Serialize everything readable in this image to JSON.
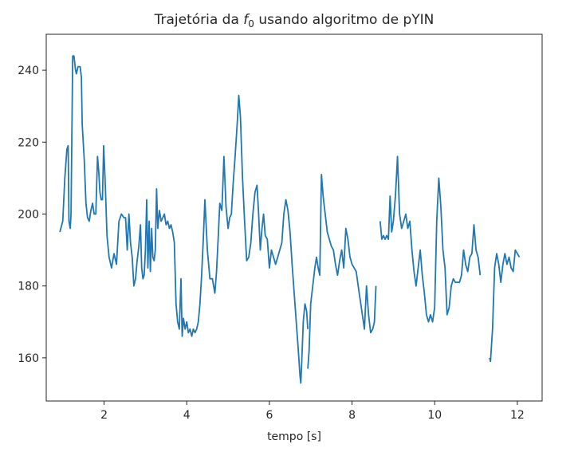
{
  "chart_data": {
    "type": "line",
    "title": "Trajetória da ",
    "title_symbol": "f",
    "title_subscript": "0",
    "title_rest": " usando algoritmo de pYIN",
    "xlabel": "tempo [s]",
    "ylabel": "",
    "xlim": [
      0.6,
      12.6
    ],
    "ylim": [
      148,
      250
    ],
    "xticks": [
      2,
      4,
      6,
      8,
      10,
      12
    ],
    "yticks": [
      160,
      180,
      200,
      220,
      240
    ],
    "grid": false,
    "line_color": "#1f77b4",
    "series": [
      {
        "segments": [
          [
            [
              0.93,
              195
            ],
            [
              1.0,
              198
            ],
            [
              1.05,
              210
            ],
            [
              1.1,
              218
            ],
            [
              1.13,
              219
            ],
            [
              1.15,
              198
            ],
            [
              1.18,
              196
            ],
            [
              1.2,
              200
            ],
            [
              1.24,
              244
            ],
            [
              1.27,
              244
            ],
            [
              1.31,
              240
            ],
            [
              1.33,
              239
            ],
            [
              1.37,
              241
            ],
            [
              1.42,
              241
            ],
            [
              1.45,
              238
            ],
            [
              1.47,
              225
            ],
            [
              1.52,
              215
            ],
            [
              1.56,
              203
            ],
            [
              1.6,
              199
            ],
            [
              1.64,
              198
            ],
            [
              1.68,
              201
            ],
            [
              1.72,
              203
            ],
            [
              1.76,
              200
            ],
            [
              1.8,
              200
            ],
            [
              1.84,
              216
            ],
            [
              1.87,
              212
            ],
            [
              1.9,
              206
            ],
            [
              1.93,
              204
            ],
            [
              1.96,
              204
            ],
            [
              1.99,
              219
            ],
            [
              2.03,
              208
            ],
            [
              2.07,
              194
            ],
            [
              2.12,
              188
            ],
            [
              2.18,
              185
            ],
            [
              2.24,
              189
            ],
            [
              2.3,
              186
            ],
            [
              2.36,
              198
            ],
            [
              2.42,
              200
            ],
            [
              2.48,
              199
            ],
            [
              2.52,
              199
            ],
            [
              2.56,
              190
            ],
            [
              2.6,
              200
            ],
            [
              2.64,
              192
            ],
            [
              2.68,
              188
            ],
            [
              2.72,
              180
            ],
            [
              2.76,
              182
            ],
            [
              2.8,
              187
            ],
            [
              2.84,
              191
            ],
            [
              2.88,
              197
            ],
            [
              2.91,
              185
            ],
            [
              2.94,
              182
            ],
            [
              2.97,
              183
            ],
            [
              3.0,
              190
            ],
            [
              3.03,
              204
            ],
            [
              3.06,
              185
            ],
            [
              3.09,
              198
            ],
            [
              3.12,
              184
            ],
            [
              3.15,
              196
            ],
            [
              3.18,
              188
            ],
            [
              3.21,
              187
            ],
            [
              3.24,
              190
            ],
            [
              3.27,
              207
            ],
            [
              3.3,
              196
            ],
            [
              3.34,
              201
            ],
            [
              3.38,
              198
            ],
            [
              3.42,
              199
            ],
            [
              3.46,
              200
            ],
            [
              3.5,
              197
            ],
            [
              3.54,
              198
            ],
            [
              3.58,
              196
            ],
            [
              3.62,
              197
            ],
            [
              3.66,
              195
            ],
            [
              3.7,
              192
            ],
            [
              3.74,
              175
            ],
            [
              3.78,
              170
            ],
            [
              3.82,
              168
            ],
            [
              3.86,
              182
            ],
            [
              3.89,
              166
            ],
            [
              3.92,
              171
            ],
            [
              3.96,
              168
            ],
            [
              4.0,
              170
            ],
            [
              4.04,
              167
            ],
            [
              4.08,
              168
            ],
            [
              4.12,
              166
            ],
            [
              4.16,
              168
            ],
            [
              4.2,
              167
            ],
            [
              4.24,
              168
            ],
            [
              4.28,
              170
            ],
            [
              4.32,
              175
            ],
            [
              4.36,
              183
            ],
            [
              4.4,
              193
            ],
            [
              4.44,
              204
            ],
            [
              4.5,
              190
            ],
            [
              4.56,
              182
            ],
            [
              4.62,
              182
            ],
            [
              4.68,
              178
            ],
            [
              4.72,
              184
            ],
            [
              4.76,
              193
            ],
            [
              4.8,
              203
            ],
            [
              4.85,
              201
            ],
            [
              4.9,
              216
            ],
            [
              4.95,
              202
            ],
            [
              5.0,
              196
            ],
            [
              5.04,
              199
            ],
            [
              5.08,
              200
            ],
            [
              5.12,
              208
            ],
            [
              5.17,
              216
            ],
            [
              5.22,
              225
            ],
            [
              5.26,
              233
            ],
            [
              5.3,
              227
            ],
            [
              5.35,
              210
            ],
            [
              5.4,
              198
            ],
            [
              5.45,
              187
            ],
            [
              5.5,
              188
            ],
            [
              5.55,
              192
            ],
            [
              5.6,
              200
            ],
            [
              5.65,
              206
            ],
            [
              5.7,
              208
            ],
            [
              5.74,
              200
            ],
            [
              5.78,
              190
            ],
            [
              5.82,
              196
            ],
            [
              5.86,
              200
            ],
            [
              5.9,
              194
            ],
            [
              5.95,
              193
            ],
            [
              6.0,
              185
            ],
            [
              6.05,
              190
            ],
            [
              6.1,
              188
            ],
            [
              6.15,
              186
            ],
            [
              6.2,
              188
            ],
            [
              6.25,
              190
            ],
            [
              6.3,
              192
            ],
            [
              6.35,
              200
            ],
            [
              6.4,
              204
            ],
            [
              6.45,
              201
            ],
            [
              6.5,
              195
            ],
            [
              6.55,
              186
            ],
            [
              6.6,
              178
            ],
            [
              6.65,
              170
            ],
            [
              6.7,
              162
            ],
            [
              6.74,
              155
            ],
            [
              6.76,
              153
            ],
            [
              6.78,
              158
            ],
            [
              6.82,
              170
            ],
            [
              6.86,
              175
            ],
            [
              6.9,
              173
            ],
            [
              6.93,
              168
            ]
          ],
          [
            [
              6.93,
              157
            ],
            [
              6.96,
              162
            ],
            [
              7.0,
              175
            ],
            [
              7.05,
              180
            ],
            [
              7.1,
              185
            ],
            [
              7.14,
              188
            ],
            [
              7.18,
              185
            ],
            [
              7.22,
              183
            ],
            [
              7.26,
              211
            ],
            [
              7.3,
              205
            ],
            [
              7.35,
              200
            ],
            [
              7.4,
              195
            ],
            [
              7.45,
              193
            ],
            [
              7.5,
              191
            ],
            [
              7.55,
              190
            ],
            [
              7.6,
              186
            ],
            [
              7.65,
              183
            ],
            [
              7.7,
              187
            ],
            [
              7.75,
              190
            ],
            [
              7.8,
              185
            ],
            [
              7.85,
              196
            ],
            [
              7.9,
              193
            ],
            [
              7.95,
              188
            ],
            [
              8.0,
              186
            ],
            [
              8.05,
              185
            ],
            [
              8.1,
              184
            ],
            [
              8.15,
              180
            ],
            [
              8.2,
              176
            ],
            [
              8.25,
              172
            ],
            [
              8.3,
              168
            ],
            [
              8.35,
              180
            ],
            [
              8.4,
              172
            ],
            [
              8.45,
              167
            ],
            [
              8.5,
              168
            ],
            [
              8.54,
              170
            ],
            [
              8.58,
              180
            ]
          ],
          [
            [
              8.68,
              198
            ],
            [
              8.72,
              193
            ],
            [
              8.76,
              194
            ],
            [
              8.8,
              193
            ],
            [
              8.84,
              194
            ],
            [
              8.88,
              193
            ],
            [
              8.92,
              205
            ],
            [
              8.96,
              195
            ],
            [
              9.0,
              198
            ],
            [
              9.05,
              205
            ],
            [
              9.1,
              216
            ],
            [
              9.15,
              200
            ],
            [
              9.2,
              196
            ],
            [
              9.25,
              198
            ],
            [
              9.3,
              200
            ],
            [
              9.35,
              196
            ],
            [
              9.4,
              198
            ],
            [
              9.45,
              190
            ],
            [
              9.5,
              184
            ],
            [
              9.55,
              180
            ],
            [
              9.6,
              185
            ],
            [
              9.65,
              190
            ],
            [
              9.7,
              183
            ],
            [
              9.75,
              178
            ],
            [
              9.8,
              172
            ],
            [
              9.85,
              170
            ],
            [
              9.9,
              172
            ],
            [
              9.95,
              170
            ],
            [
              10.0,
              174
            ],
            [
              10.05,
              198
            ],
            [
              10.1,
              210
            ],
            [
              10.15,
              202
            ],
            [
              10.2,
              190
            ],
            [
              10.25,
              185
            ],
            [
              10.3,
              172
            ],
            [
              10.35,
              174
            ],
            [
              10.4,
              180
            ],
            [
              10.45,
              182
            ],
            [
              10.5,
              181
            ],
            [
              10.55,
              181
            ],
            [
              10.6,
              181
            ],
            [
              10.65,
              183
            ],
            [
              10.7,
              190
            ],
            [
              10.75,
              186
            ],
            [
              10.8,
              184
            ],
            [
              10.85,
              188
            ],
            [
              10.9,
              189
            ],
            [
              10.95,
              197
            ],
            [
              11.0,
              190
            ],
            [
              11.05,
              188
            ],
            [
              11.1,
              183
            ]
          ],
          [
            [
              11.33,
              160
            ],
            [
              11.35,
              159
            ],
            [
              11.4,
              168
            ],
            [
              11.45,
              185
            ],
            [
              11.5,
              189
            ],
            [
              11.55,
              186
            ],
            [
              11.6,
              181
            ],
            [
              11.65,
              186
            ],
            [
              11.7,
              189
            ],
            [
              11.75,
              186
            ],
            [
              11.8,
              188
            ],
            [
              11.85,
              185
            ],
            [
              11.9,
              184
            ],
            [
              11.95,
              190
            ],
            [
              12.0,
              189
            ],
            [
              12.05,
              188
            ]
          ]
        ]
      }
    ]
  }
}
